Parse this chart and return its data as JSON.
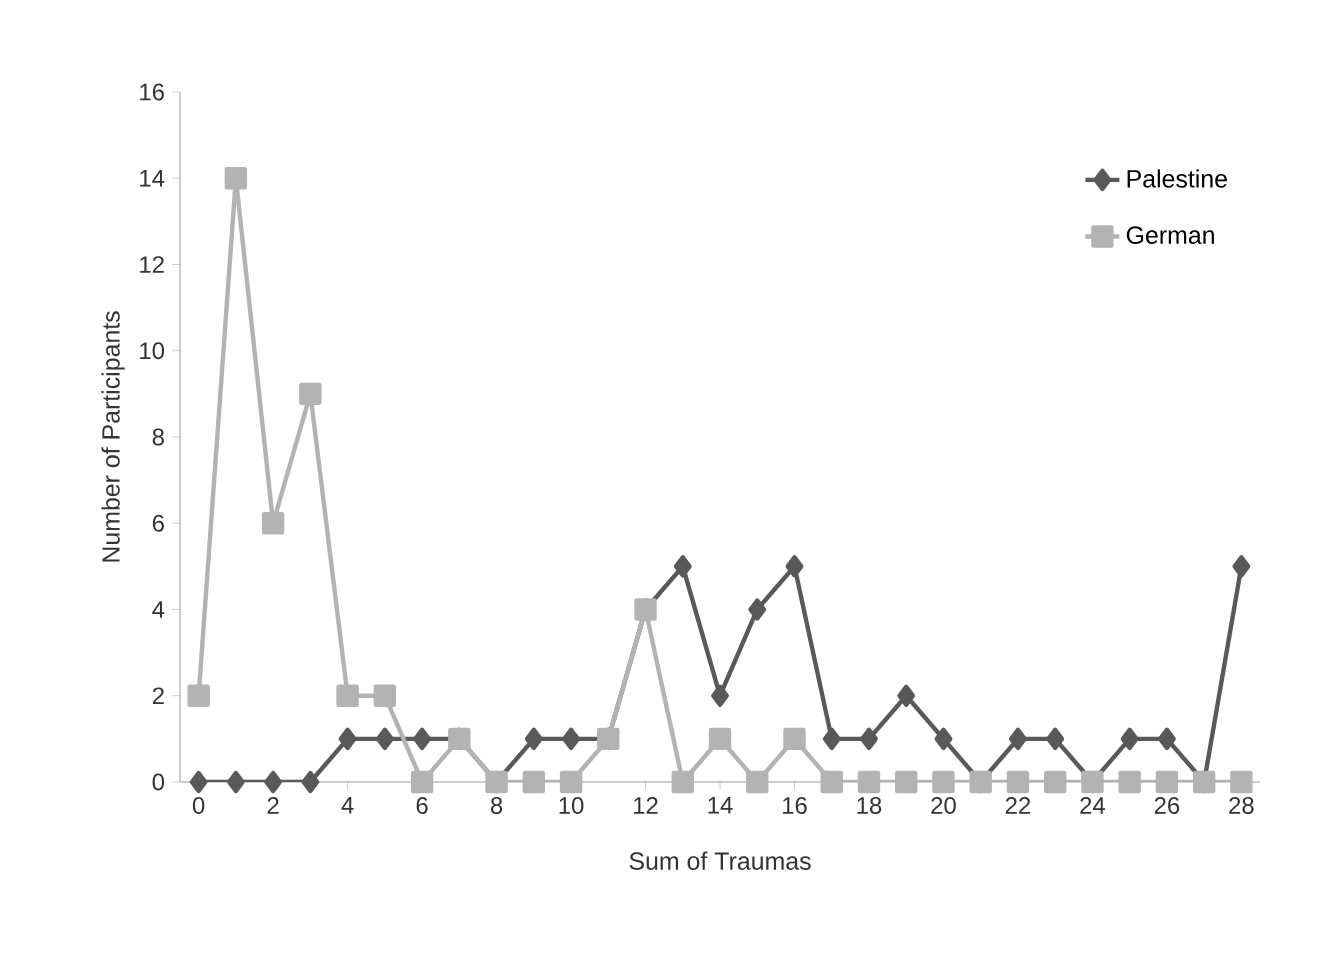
{
  "chart_data": {
    "type": "line",
    "xlabel": "Sum of Traumas",
    "ylabel": "Number of Participants",
    "x": [
      0,
      1,
      2,
      3,
      4,
      5,
      6,
      7,
      8,
      9,
      10,
      11,
      12,
      13,
      14,
      15,
      16,
      17,
      18,
      19,
      20,
      21,
      22,
      23,
      24,
      25,
      26,
      27,
      28
    ],
    "xlim": [
      -0.5,
      28.5
    ],
    "xticks": [
      0,
      2,
      4,
      6,
      8,
      10,
      12,
      14,
      16,
      18,
      20,
      22,
      24,
      26,
      28
    ],
    "ylim": [
      0,
      16
    ],
    "yticks": [
      0,
      2,
      4,
      6,
      8,
      10,
      12,
      14,
      16
    ],
    "grid": false,
    "legend": "top right",
    "series": [
      {
        "name": "Palestine",
        "color": "#595959",
        "marker": "diamond",
        "values": [
          0,
          0,
          0,
          0,
          1,
          1,
          1,
          1,
          0,
          1,
          1,
          1,
          4,
          5,
          2,
          4,
          5,
          1,
          1,
          2,
          1,
          0,
          1,
          1,
          0,
          1,
          1,
          0,
          5
        ]
      },
      {
        "name": "German",
        "color": "#b3b3b3",
        "marker": "square",
        "values": [
          2,
          14,
          6,
          9,
          2,
          2,
          0,
          1,
          0,
          0,
          0,
          1,
          4,
          0,
          1,
          0,
          1,
          0,
          0,
          0,
          0,
          0,
          0,
          0,
          0,
          0,
          0,
          0,
          0
        ]
      }
    ]
  }
}
